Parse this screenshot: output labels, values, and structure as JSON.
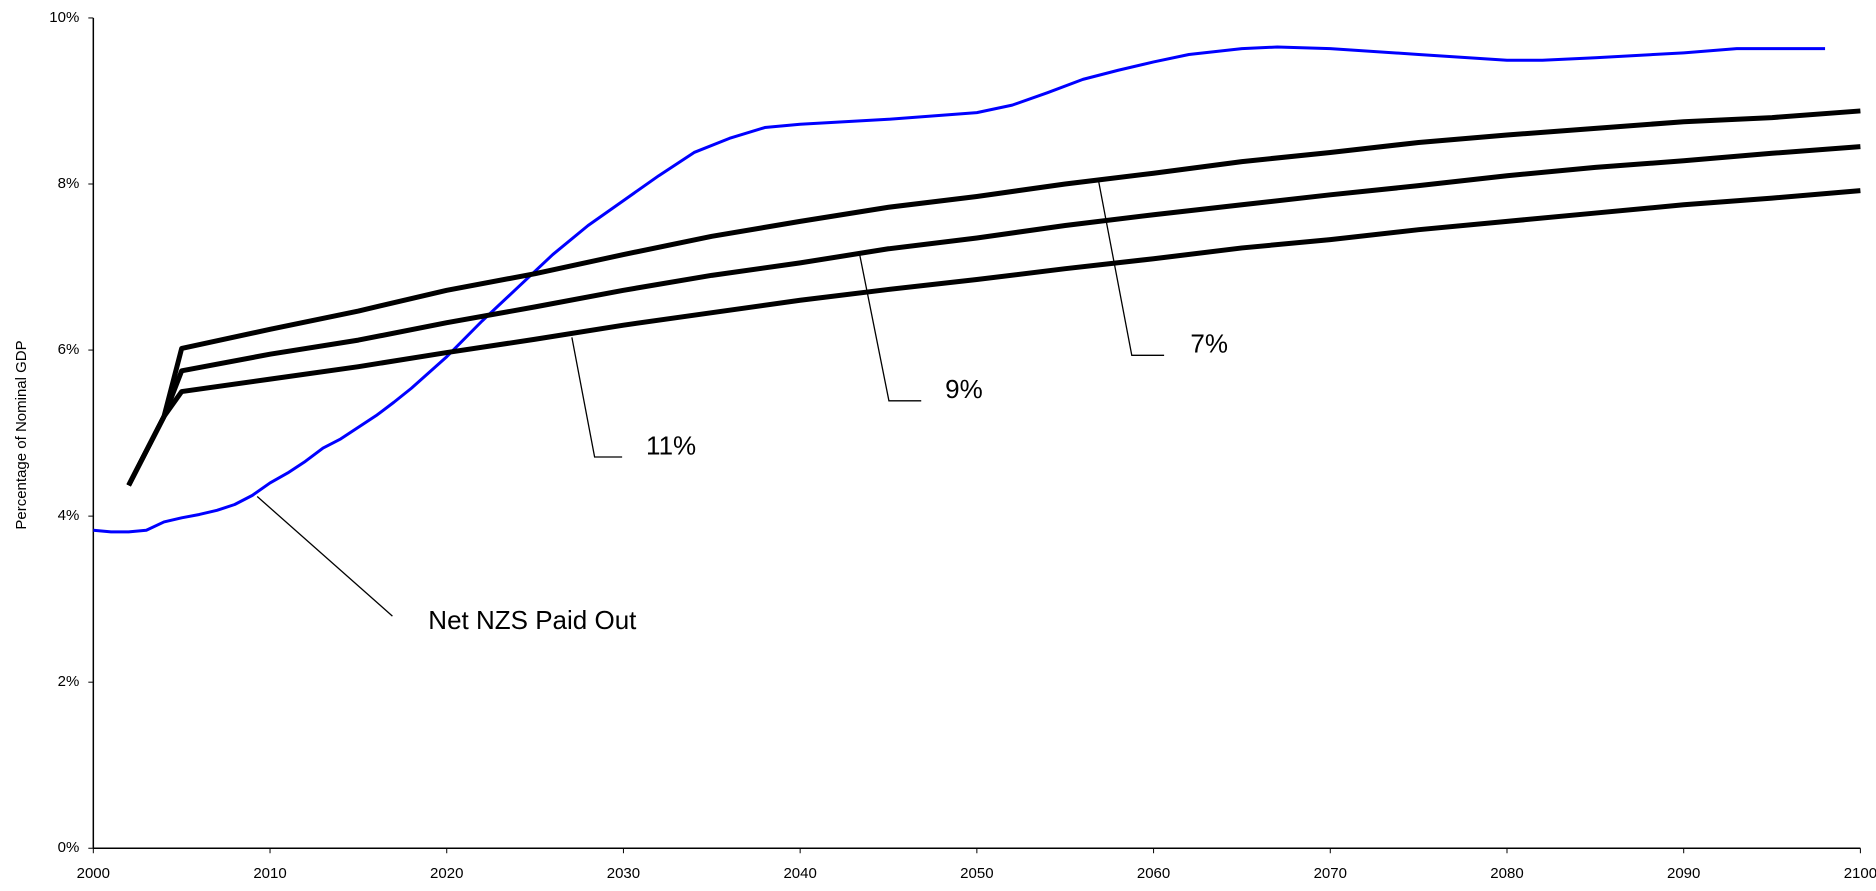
{
  "chart_data": {
    "type": "line",
    "y_label": "Percentage of Nominal GDP",
    "xlim": [
      2000,
      2100
    ],
    "xticks": [
      2000,
      2010,
      2020,
      2030,
      2040,
      2050,
      2060,
      2070,
      2080,
      2090,
      2100
    ],
    "ylim": [
      0,
      10
    ],
    "yticks": [
      {
        "value": 0,
        "label": "0%"
      },
      {
        "value": 2,
        "label": "2%"
      },
      {
        "value": 4,
        "label": "4%"
      },
      {
        "value": 6,
        "label": "6%"
      },
      {
        "value": 8,
        "label": "8%"
      },
      {
        "value": 10,
        "label": "10%"
      }
    ],
    "grid": false,
    "series": [
      {
        "name": "Net NZS Paid Out",
        "color": "#0000ff",
        "x": [
          2000,
          2001,
          2002,
          2003,
          2004,
          2005,
          2006,
          2007,
          2008,
          2009,
          2010,
          2011,
          2012,
          2013,
          2014,
          2015,
          2016,
          2017,
          2018,
          2019,
          2020,
          2022,
          2024,
          2026,
          2028,
          2030,
          2032,
          2034,
          2036,
          2038,
          2040,
          2045,
          2050,
          2052,
          2054,
          2056,
          2058,
          2060,
          2062,
          2065,
          2067,
          2070,
          2075,
          2080,
          2082,
          2085,
          2090,
          2093,
          2098
        ],
        "values": [
          3.83,
          3.81,
          3.81,
          3.83,
          3.93,
          3.98,
          4.02,
          4.07,
          4.14,
          4.25,
          4.4,
          4.52,
          4.66,
          4.82,
          4.93,
          5.07,
          5.21,
          5.37,
          5.54,
          5.73,
          5.92,
          6.35,
          6.75,
          7.15,
          7.5,
          7.8,
          8.1,
          8.38,
          8.55,
          8.68,
          8.72,
          8.78,
          8.86,
          8.95,
          9.1,
          9.26,
          9.37,
          9.47,
          9.56,
          9.63,
          9.65,
          9.63,
          9.56,
          9.49,
          9.49,
          9.52,
          9.58,
          9.63,
          9.63
        ]
      },
      {
        "name": "7%",
        "color": "#000000",
        "x": [
          2002,
          2004,
          2005,
          2010,
          2015,
          2020,
          2025,
          2030,
          2035,
          2040,
          2045,
          2050,
          2055,
          2060,
          2065,
          2070,
          2075,
          2080,
          2085,
          2090,
          2095,
          2100
        ],
        "values": [
          4.37,
          5.2,
          6.02,
          6.25,
          6.47,
          6.72,
          6.92,
          7.15,
          7.37,
          7.55,
          7.72,
          7.85,
          8.0,
          8.13,
          8.27,
          8.38,
          8.5,
          8.59,
          8.67,
          8.75,
          8.8,
          8.88
        ]
      },
      {
        "name": "9%",
        "color": "#000000",
        "x": [
          2002,
          2004,
          2005,
          2010,
          2015,
          2020,
          2025,
          2030,
          2035,
          2040,
          2045,
          2050,
          2055,
          2060,
          2065,
          2070,
          2075,
          2080,
          2085,
          2090,
          2095,
          2100
        ],
        "values": [
          4.37,
          5.2,
          5.75,
          5.95,
          6.12,
          6.33,
          6.52,
          6.72,
          6.9,
          7.05,
          7.22,
          7.35,
          7.5,
          7.63,
          7.75,
          7.87,
          7.98,
          8.1,
          8.2,
          8.28,
          8.37,
          8.45
        ]
      },
      {
        "name": "11%",
        "color": "#000000",
        "x": [
          2002,
          2004,
          2005,
          2010,
          2015,
          2020,
          2025,
          2030,
          2035,
          2040,
          2045,
          2050,
          2055,
          2060,
          2065,
          2070,
          2075,
          2080,
          2085,
          2090,
          2095,
          2100
        ],
        "values": [
          4.37,
          5.2,
          5.5,
          5.65,
          5.8,
          5.97,
          6.13,
          6.3,
          6.45,
          6.6,
          6.73,
          6.85,
          6.98,
          7.1,
          7.23,
          7.33,
          7.45,
          7.55,
          7.65,
          7.75,
          7.83,
          7.92
        ]
      }
    ]
  }
}
